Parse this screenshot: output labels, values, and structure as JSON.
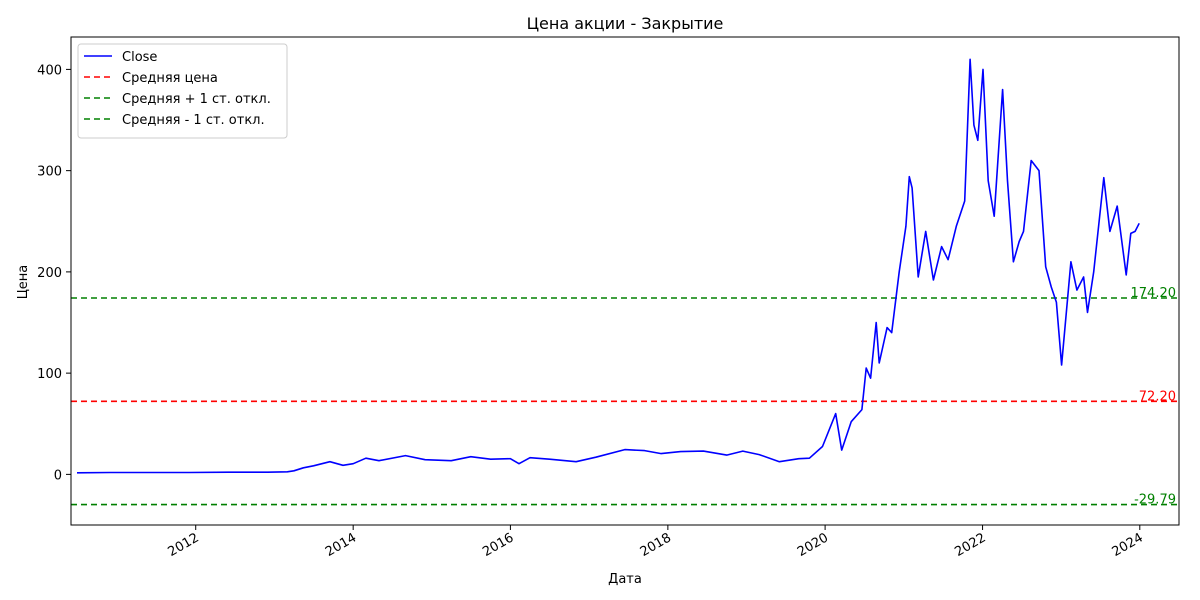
{
  "chart_data": {
    "type": "line",
    "title": "Цена акции - Закрытие",
    "xlabel": "Дата",
    "ylabel": "Цена",
    "x_range": [
      "2010-06-01",
      "2024-07-01"
    ],
    "ylim": [
      -50,
      432
    ],
    "x_ticks": [
      "2012",
      "2014",
      "2016",
      "2018",
      "2020",
      "2022",
      "2024"
    ],
    "y_ticks": [
      0,
      100,
      200,
      300,
      400
    ],
    "grid": false,
    "legend_position": "top-left",
    "series": [
      {
        "name": "Close",
        "color": "#0000ff",
        "style": "solid",
        "points": [
          [
            "2010-06-29",
            1.6
          ],
          [
            "2010-12-01",
            1.9
          ],
          [
            "2011-06-01",
            1.9
          ],
          [
            "2011-12-01",
            1.9
          ],
          [
            "2012-06-01",
            2.2
          ],
          [
            "2012-12-01",
            2.2
          ],
          [
            "2013-03-01",
            2.5
          ],
          [
            "2013-04-01",
            3.5
          ],
          [
            "2013-05-15",
            6.5
          ],
          [
            "2013-07-01",
            8.5
          ],
          [
            "2013-09-15",
            12.5
          ],
          [
            "2013-11-15",
            9.0
          ],
          [
            "2014-01-01",
            10.5
          ],
          [
            "2014-03-01",
            16.0
          ],
          [
            "2014-05-01",
            13.5
          ],
          [
            "2014-09-01",
            18.5
          ],
          [
            "2014-12-01",
            14.5
          ],
          [
            "2015-04-01",
            13.5
          ],
          [
            "2015-07-01",
            17.5
          ],
          [
            "2015-10-01",
            15.0
          ],
          [
            "2016-01-01",
            15.5
          ],
          [
            "2016-02-10",
            10.5
          ],
          [
            "2016-04-01",
            16.5
          ],
          [
            "2016-07-01",
            15.0
          ],
          [
            "2016-11-01",
            12.5
          ],
          [
            "2017-02-01",
            17.0
          ],
          [
            "2017-06-15",
            24.5
          ],
          [
            "2017-09-15",
            23.5
          ],
          [
            "2017-12-01",
            20.5
          ],
          [
            "2018-03-01",
            22.5
          ],
          [
            "2018-06-15",
            23.0
          ],
          [
            "2018-10-01",
            19.0
          ],
          [
            "2018-12-15",
            23.0
          ],
          [
            "2019-03-01",
            19.5
          ],
          [
            "2019-06-03",
            12.5
          ],
          [
            "2019-09-01",
            15.5
          ],
          [
            "2019-10-20",
            16.0
          ],
          [
            "2019-12-20",
            27.5
          ],
          [
            "2020-02-19",
            60.0
          ],
          [
            "2020-03-18",
            24.0
          ],
          [
            "2020-05-01",
            52.0
          ],
          [
            "2020-06-20",
            64.0
          ],
          [
            "2020-07-10",
            105.0
          ],
          [
            "2020-07-30",
            95.0
          ],
          [
            "2020-08-25",
            150.0
          ],
          [
            "2020-09-08",
            110.0
          ],
          [
            "2020-10-15",
            145.0
          ],
          [
            "2020-11-05",
            140.0
          ],
          [
            "2020-12-10",
            200.0
          ],
          [
            "2021-01-10",
            245.0
          ],
          [
            "2021-01-26",
            294.0
          ],
          [
            "2021-02-08",
            283.0
          ],
          [
            "2021-03-08",
            195.0
          ],
          [
            "2021-04-12",
            240.0
          ],
          [
            "2021-05-18",
            192.0
          ],
          [
            "2021-06-25",
            225.0
          ],
          [
            "2021-07-25",
            212.0
          ],
          [
            "2021-09-01",
            245.0
          ],
          [
            "2021-10-10",
            270.0
          ],
          [
            "2021-11-04",
            410.0
          ],
          [
            "2021-11-22",
            345.0
          ],
          [
            "2021-12-10",
            330.0
          ],
          [
            "2022-01-03",
            400.0
          ],
          [
            "2022-01-27",
            290.0
          ],
          [
            "2022-02-24",
            255.0
          ],
          [
            "2022-04-04",
            380.0
          ],
          [
            "2022-04-27",
            290.0
          ],
          [
            "2022-05-24",
            210.0
          ],
          [
            "2022-06-20",
            230.0
          ],
          [
            "2022-07-10",
            240.0
          ],
          [
            "2022-08-15",
            310.0
          ],
          [
            "2022-09-20",
            300.0
          ],
          [
            "2022-10-21",
            205.0
          ],
          [
            "2022-11-16",
            185.0
          ],
          [
            "2022-12-10",
            170.0
          ],
          [
            "2023-01-03",
            108.0
          ],
          [
            "2023-02-15",
            210.0
          ],
          [
            "2023-03-15",
            182.0
          ],
          [
            "2023-04-15",
            195.0
          ],
          [
            "2023-05-03",
            160.0
          ],
          [
            "2023-06-01",
            200.0
          ],
          [
            "2023-07-18",
            293.0
          ],
          [
            "2023-08-15",
            240.0
          ],
          [
            "2023-09-18",
            265.0
          ],
          [
            "2023-10-30",
            197.0
          ],
          [
            "2023-11-20",
            238.0
          ],
          [
            "2023-12-10",
            240.0
          ],
          [
            "2023-12-29",
            248.0
          ]
        ]
      }
    ],
    "reference_lines": [
      {
        "name": "Средняя цена",
        "value": 72.2,
        "label": "72.20",
        "color": "#ff0000",
        "style": "dashed"
      },
      {
        "name": "Средняя + 1 ст. откл.",
        "value": 174.2,
        "label": "174.20",
        "color": "#008000",
        "style": "dashed"
      },
      {
        "name": "Средняя - 1 ст. откл.",
        "value": -29.79,
        "label": "-29.79",
        "color": "#008000",
        "style": "dashed"
      }
    ]
  }
}
